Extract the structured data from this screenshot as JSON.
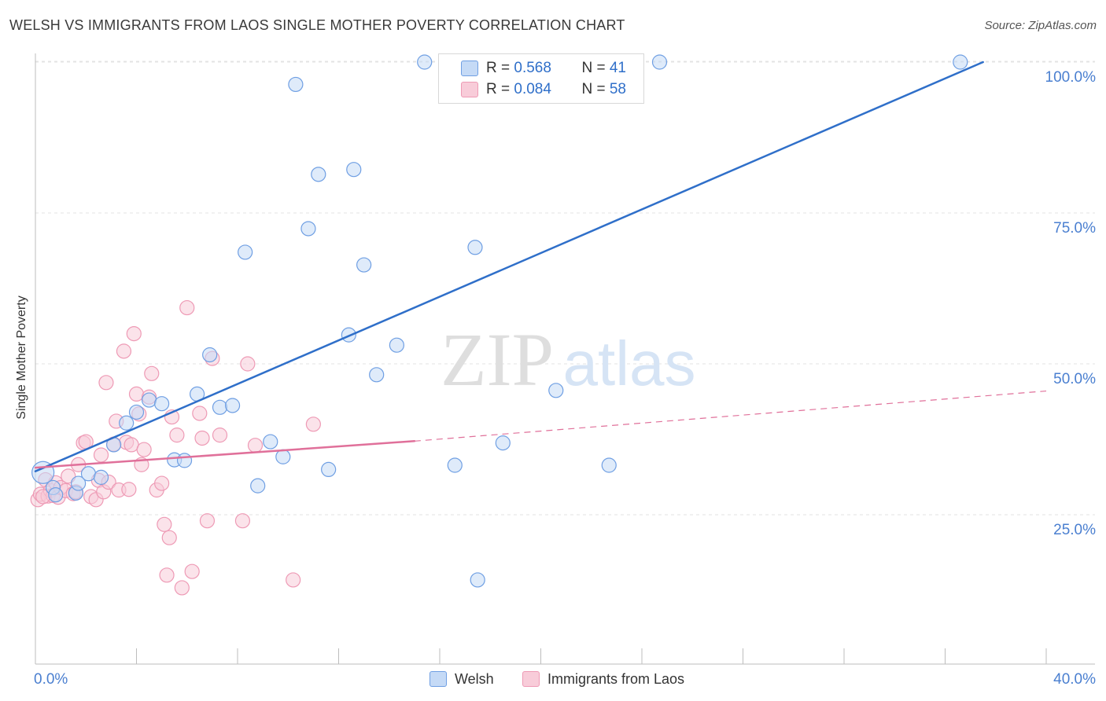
{
  "title": "WELSH VS IMMIGRANTS FROM LAOS SINGLE MOTHER POVERTY CORRELATION CHART",
  "source": "Source: ZipAtlas.com",
  "watermark": {
    "zip": "ZIP",
    "atlas": "atlas"
  },
  "legend_top": {
    "rows": [
      {
        "r_label": "R = ",
        "r_value": "0.568",
        "n_label": "N = ",
        "n_value": "41"
      },
      {
        "r_label": "R = ",
        "r_value": "0.084",
        "n_label": "N = ",
        "n_value": "58"
      }
    ]
  },
  "chart_data": {
    "type": "scatter",
    "title": "WELSH VS IMMIGRANTS FROM LAOS SINGLE MOTHER POVERTY CORRELATION CHART",
    "xlabel": "",
    "ylabel": "Single Mother Poverty",
    "xlim": [
      0,
      40
    ],
    "ylim": [
      0,
      103
    ],
    "x_tick_labels": [
      "0.0%",
      "40.0%"
    ],
    "y_tick_labels": [
      "25.0%",
      "50.0%",
      "75.0%",
      "100.0%"
    ],
    "y_ticks": [
      25,
      50,
      75,
      100
    ],
    "grid": true,
    "legend_placement": "bottom",
    "series": [
      {
        "name": "Welsh",
        "color": "#6f9fe3",
        "fill": "#c5daf6",
        "trend_color": "#2f6fc9",
        "r": 0.568,
        "n": 41,
        "trend": {
          "x": [
            0.0,
            37.5
          ],
          "y": [
            32.2,
            100.0
          ],
          "dashed_to": null
        },
        "points": [
          [
            0.3,
            32.0
          ],
          [
            0.7,
            29.5
          ],
          [
            0.8,
            28.3
          ],
          [
            1.6,
            28.6
          ],
          [
            1.7,
            30.2
          ],
          [
            2.1,
            31.8
          ],
          [
            2.6,
            31.2
          ],
          [
            3.1,
            36.6
          ],
          [
            3.6,
            40.2
          ],
          [
            4.0,
            42.0
          ],
          [
            4.5,
            44.0
          ],
          [
            5.0,
            43.4
          ],
          [
            5.5,
            34.1
          ],
          [
            5.9,
            34.0
          ],
          [
            6.4,
            45.0
          ],
          [
            6.9,
            51.5
          ],
          [
            7.3,
            42.8
          ],
          [
            7.8,
            43.1
          ],
          [
            8.3,
            68.5
          ],
          [
            8.8,
            29.8
          ],
          [
            9.3,
            37.1
          ],
          [
            9.8,
            34.6
          ],
          [
            10.3,
            96.3
          ],
          [
            10.8,
            72.4
          ],
          [
            11.2,
            81.4
          ],
          [
            11.6,
            32.5
          ],
          [
            12.4,
            54.8
          ],
          [
            12.6,
            82.2
          ],
          [
            13.0,
            66.4
          ],
          [
            13.5,
            48.2
          ],
          [
            14.3,
            53.1
          ],
          [
            15.4,
            100.0
          ],
          [
            16.6,
            33.2
          ],
          [
            17.4,
            69.3
          ],
          [
            17.5,
            14.2
          ],
          [
            18.5,
            36.9
          ],
          [
            19.9,
            100.0
          ],
          [
            20.6,
            45.6
          ],
          [
            22.7,
            33.2
          ],
          [
            24.7,
            100.0
          ],
          [
            36.6,
            100.0
          ]
        ]
      },
      {
        "name": "Immigrants from Laos",
        "color": "#ee9ab5",
        "fill": "#f8ccd9",
        "trend_color": "#e0709a",
        "r": 0.084,
        "n": 58,
        "trend": {
          "x": [
            0.0,
            15.0
          ],
          "y": [
            32.8,
            37.2
          ],
          "dashed_to": [
            40.0,
            45.5
          ]
        },
        "points": [
          [
            0.1,
            27.5
          ],
          [
            0.2,
            28.4
          ],
          [
            0.4,
            30.8
          ],
          [
            0.5,
            28.1
          ],
          [
            0.6,
            29.0
          ],
          [
            0.7,
            28.2
          ],
          [
            0.8,
            30.3
          ],
          [
            0.9,
            27.9
          ],
          [
            1.0,
            29.5
          ],
          [
            1.2,
            29.0
          ],
          [
            1.3,
            31.4
          ],
          [
            1.5,
            28.5
          ],
          [
            1.6,
            28.8
          ],
          [
            1.7,
            33.3
          ],
          [
            1.9,
            36.9
          ],
          [
            2.0,
            37.1
          ],
          [
            2.2,
            28.0
          ],
          [
            2.4,
            27.5
          ],
          [
            2.5,
            30.7
          ],
          [
            2.6,
            34.9
          ],
          [
            2.7,
            28.8
          ],
          [
            2.8,
            46.9
          ],
          [
            2.9,
            30.4
          ],
          [
            3.1,
            36.7
          ],
          [
            3.2,
            40.5
          ],
          [
            3.3,
            29.1
          ],
          [
            3.5,
            52.1
          ],
          [
            3.6,
            37.0
          ],
          [
            3.7,
            29.2
          ],
          [
            3.8,
            36.6
          ],
          [
            3.9,
            55.0
          ],
          [
            4.0,
            45.0
          ],
          [
            4.1,
            41.7
          ],
          [
            4.2,
            33.3
          ],
          [
            4.3,
            35.8
          ],
          [
            4.5,
            44.5
          ],
          [
            4.6,
            48.4
          ],
          [
            4.8,
            29.1
          ],
          [
            5.0,
            30.2
          ],
          [
            5.1,
            23.4
          ],
          [
            5.2,
            15.0
          ],
          [
            5.3,
            21.2
          ],
          [
            5.4,
            41.2
          ],
          [
            5.6,
            38.2
          ],
          [
            5.8,
            12.9
          ],
          [
            6.0,
            59.3
          ],
          [
            6.2,
            15.6
          ],
          [
            6.5,
            41.8
          ],
          [
            6.6,
            37.7
          ],
          [
            6.8,
            24.0
          ],
          [
            7.0,
            50.9
          ],
          [
            7.3,
            38.2
          ],
          [
            8.2,
            24.0
          ],
          [
            8.4,
            50.0
          ],
          [
            8.7,
            36.5
          ],
          [
            10.2,
            14.2
          ],
          [
            11.0,
            40.0
          ],
          [
            0.3,
            28.0
          ]
        ]
      }
    ]
  }
}
